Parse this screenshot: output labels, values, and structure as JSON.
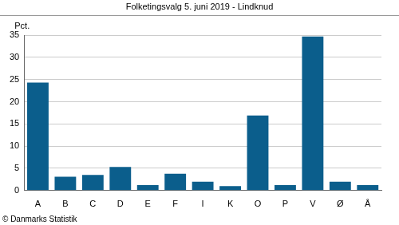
{
  "chart_data": {
    "type": "bar",
    "title": "Folketingsvalg 5. juni 2019 - Lindknud",
    "ylabel": "Pct.",
    "source": "© Danmarks Statistik",
    "categories": [
      "A",
      "B",
      "C",
      "D",
      "E",
      "F",
      "I",
      "K",
      "O",
      "P",
      "V",
      "Ø",
      "Å"
    ],
    "values": [
      24.3,
      3.1,
      3.5,
      5.3,
      1.2,
      3.8,
      2.0,
      1.0,
      16.9,
      1.2,
      34.7,
      2.0,
      1.2
    ],
    "color": "#0b5e8c",
    "ylim": [
      0,
      35
    ],
    "yticks": [
      0,
      5,
      10,
      15,
      20,
      25,
      30,
      35
    ],
    "grid": true
  }
}
